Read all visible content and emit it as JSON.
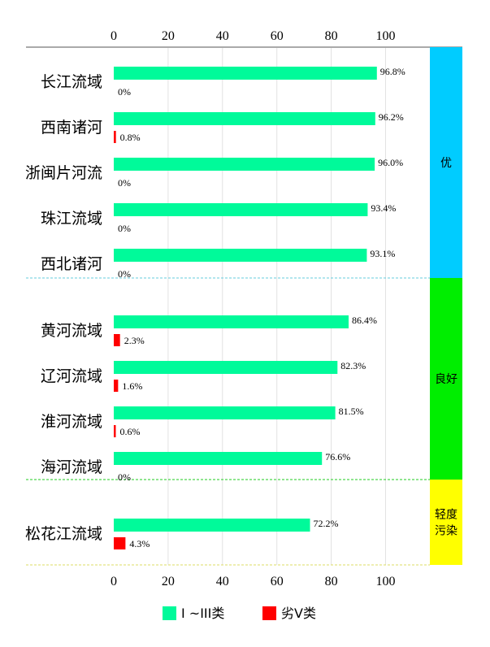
{
  "chart_data": {
    "type": "bar",
    "orientation": "horizontal",
    "xlim": [
      0,
      100
    ],
    "x_ticks": [
      0,
      20,
      40,
      60,
      80,
      100
    ],
    "categories": [
      "长江流域",
      "西南诸河",
      "浙闽片河流",
      "珠江流域",
      "西北诸河",
      "黄河流域",
      "辽河流域",
      "淮河流域",
      "海河流域",
      "松花江流域"
    ],
    "series": [
      {
        "name": "I ~III类",
        "color": "#00FA9A",
        "values": [
          96.8,
          96.2,
          96.0,
          93.4,
          93.1,
          86.4,
          82.3,
          81.5,
          76.6,
          72.2
        ],
        "labels": [
          "96.8%",
          "96.2%",
          "96.0%",
          "93.4%",
          "93.1%",
          "86.4%",
          "82.3%",
          "81.5%",
          "76.6%",
          "72.2%"
        ]
      },
      {
        "name": "劣Ⅴ类",
        "color": "#FF0000",
        "values": [
          0,
          0.8,
          0,
          0,
          0,
          2.3,
          1.6,
          0.6,
          0,
          4.3
        ],
        "labels": [
          "0%",
          "0.8%",
          "0%",
          "0%",
          "0%",
          "2.3%",
          "1.6%",
          "0.6%",
          "0%",
          "4.3%"
        ]
      }
    ],
    "groups": [
      {
        "label": "优",
        "count": 5,
        "color": "#00CCFF",
        "line_color": "#66CCDD"
      },
      {
        "label": "良好",
        "count": 4,
        "color": "#00EE00",
        "line_color": "#22CC22"
      },
      {
        "label": "轻度污染",
        "label_lines": [
          "轻度",
          "污染"
        ],
        "count": 1,
        "color": "#FFFF00",
        "line_color": "#DDDD66"
      }
    ],
    "grid": true,
    "legend_position": "bottom"
  }
}
